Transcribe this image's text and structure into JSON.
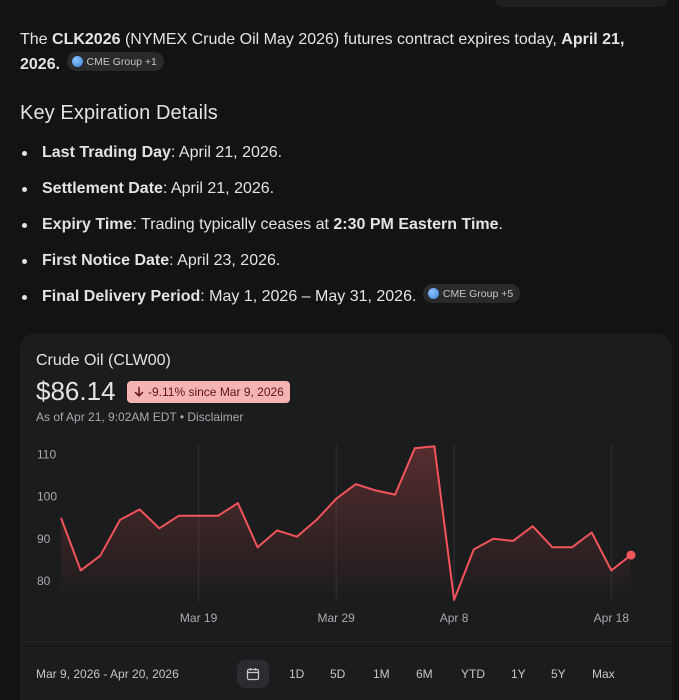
{
  "intro": {
    "pre": "The ",
    "ticker": "CLK2026",
    "mid": " (NYMEX Crude Oil May 2026) futures contract expires today, ",
    "date": "April 21, 2026.",
    "chip": "CME Group +1"
  },
  "section_title": "Key Expiration Details",
  "details": [
    {
      "label": "Last Trading Day",
      "text": ": April 21, 2026."
    },
    {
      "label": "Settlement Date",
      "text": ": April 21, 2026."
    },
    {
      "label": "Expiry Time",
      "text": ": Trading typically ceases at ",
      "bold2": "2:30 PM Eastern Time",
      "tail": "."
    },
    {
      "label": "First Notice Date",
      "text": ": April 23, 2026."
    },
    {
      "label": "Final Delivery Period",
      "text": ": May 1, 2026 – May 31, 2026.",
      "chip": "CME Group +5"
    }
  ],
  "card": {
    "title": "Crude Oil (CLW00)",
    "price": "$86.14",
    "change": "-9.11% since Mar 9, 2026",
    "asof": "As of Apr 21, 9:02AM EDT • ",
    "disclaimer": "Disclaimer",
    "date_range": "Mar 9, 2026 - Apr 20, 2026",
    "periods": [
      "1D",
      "5D",
      "1M",
      "6M",
      "YTD",
      "1Y",
      "5Y",
      "Max"
    ]
  },
  "colors": {
    "line": "#f2545b",
    "badge_bg": "#f4b4b4",
    "badge_fg": "#601410"
  },
  "chart_data": {
    "type": "line",
    "y_ticks": [
      "110",
      "100",
      "90",
      "80"
    ],
    "ylim": [
      75,
      113
    ],
    "x_ticks": [
      {
        "label": "Mar 19",
        "index": 7
      },
      {
        "label": "Mar 29",
        "index": 14
      },
      {
        "label": "Apr 8",
        "index": 20
      },
      {
        "label": "Apr 18",
        "index": 28
      }
    ],
    "series": [
      {
        "values": [
          95,
          82.5,
          86,
          94.5,
          97,
          92.5,
          95.5,
          95.5,
          95.5,
          98.5,
          88,
          92,
          90.5,
          94.5,
          99.5,
          103,
          101.5,
          100.5,
          111.5,
          112,
          75.5,
          87.5,
          90,
          89.5,
          93,
          88,
          88,
          91.5,
          82.5,
          86.14
        ]
      }
    ]
  }
}
